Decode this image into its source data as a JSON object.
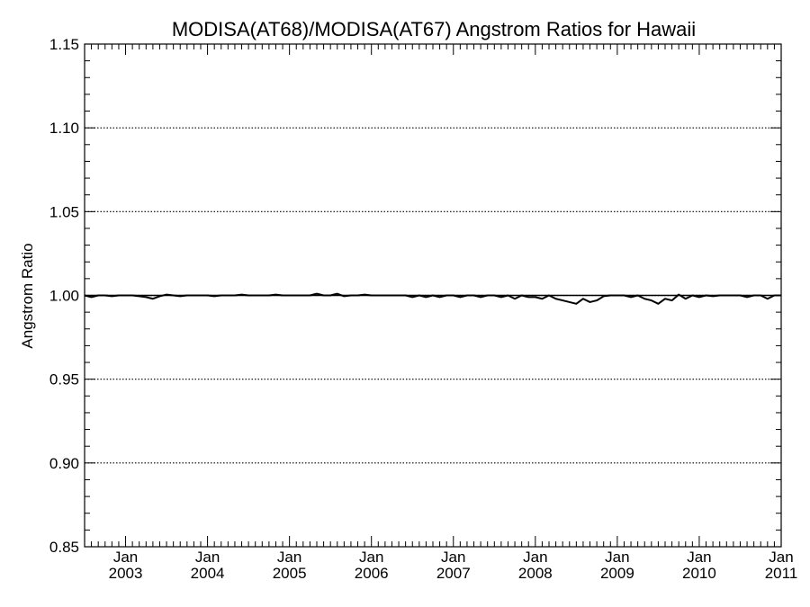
{
  "chart_data": {
    "type": "line",
    "title": "MODISA(AT68)/MODISA(AT67)  Angstrom Ratios for Hawaii",
    "xlabel": "",
    "ylabel": "Angstrom Ratio",
    "xlim": [
      "2002-07",
      "2011-01"
    ],
    "ylim": [
      0.85,
      1.15
    ],
    "grid": "horizontal dotted",
    "x_ticks": [
      {
        "month": "Jan",
        "year": "2003",
        "date": "2003-01"
      },
      {
        "month": "Jan",
        "year": "2004",
        "date": "2004-01"
      },
      {
        "month": "Jan",
        "year": "2005",
        "date": "2005-01"
      },
      {
        "month": "Jan",
        "year": "2006",
        "date": "2006-01"
      },
      {
        "month": "Jan",
        "year": "2007",
        "date": "2007-01"
      },
      {
        "month": "Jan",
        "year": "2008",
        "date": "2008-01"
      },
      {
        "month": "Jan",
        "year": "2009",
        "date": "2009-01"
      },
      {
        "month": "Jan",
        "year": "2010",
        "date": "2010-01"
      },
      {
        "month": "Jan",
        "year": "2011",
        "date": "2011-01"
      }
    ],
    "y_ticks": [
      "0.85",
      "0.90",
      "0.95",
      "1.00",
      "1.05",
      "1.10",
      "1.15"
    ],
    "reference_line": 1.0,
    "series": [
      {
        "x": [
          "2002-07",
          "2002-08",
          "2002-09",
          "2002-10",
          "2002-11",
          "2002-12",
          "2003-01",
          "2003-02",
          "2003-03",
          "2003-04",
          "2003-05",
          "2003-06",
          "2003-07",
          "2003-08",
          "2003-09",
          "2003-10",
          "2003-11",
          "2003-12",
          "2004-01",
          "2004-02",
          "2004-03",
          "2004-04",
          "2004-05",
          "2004-06",
          "2004-07",
          "2004-08",
          "2004-09",
          "2004-10",
          "2004-11",
          "2004-12",
          "2005-01",
          "2005-02",
          "2005-03",
          "2005-04",
          "2005-05",
          "2005-06",
          "2005-07",
          "2005-08",
          "2005-09",
          "2005-10",
          "2005-11",
          "2005-12",
          "2006-01",
          "2006-02",
          "2006-03",
          "2006-04",
          "2006-05",
          "2006-06",
          "2006-07",
          "2006-08",
          "2006-09",
          "2006-10",
          "2006-11",
          "2006-12",
          "2007-01",
          "2007-02",
          "2007-03",
          "2007-04",
          "2007-05",
          "2007-06",
          "2007-07",
          "2007-08",
          "2007-09",
          "2007-10",
          "2007-11",
          "2007-12",
          "2008-01",
          "2008-02",
          "2008-03",
          "2008-04",
          "2008-05",
          "2008-06",
          "2008-07",
          "2008-08",
          "2008-09",
          "2008-10",
          "2008-11",
          "2008-12",
          "2009-01",
          "2009-02",
          "2009-03",
          "2009-04",
          "2009-05",
          "2009-06",
          "2009-07",
          "2009-08",
          "2009-09",
          "2009-10",
          "2009-11",
          "2009-12",
          "2010-01",
          "2010-02",
          "2010-03",
          "2010-04",
          "2010-05",
          "2010-06",
          "2010-07",
          "2010-08",
          "2010-09",
          "2010-10",
          "2010-11",
          "2010-12",
          "2011-01"
        ],
        "values": [
          1.0,
          0.999,
          1.0,
          1.0,
          0.9995,
          1.0,
          1.0,
          1.0,
          0.9995,
          0.999,
          0.998,
          0.9995,
          1.0005,
          1.0,
          0.9995,
          1.0,
          1.0,
          1.0,
          1.0,
          0.9995,
          1.0,
          1.0,
          1.0,
          1.0005,
          1.0,
          1.0,
          1.0,
          1.0,
          1.0005,
          1.0,
          1.0,
          1.0,
          1.0,
          1.0,
          1.001,
          1.0,
          1.0,
          1.001,
          0.9995,
          1.0,
          1.0,
          1.0005,
          1.0,
          1.0,
          1.0,
          1.0,
          1.0,
          1.0,
          0.999,
          1.0,
          0.999,
          1.0,
          0.999,
          1.0,
          1.0,
          0.999,
          1.0,
          1.0,
          0.999,
          1.0,
          1.0,
          0.999,
          1.0,
          0.998,
          1.0,
          0.999,
          0.999,
          0.998,
          1.0,
          0.998,
          0.997,
          0.996,
          0.995,
          0.998,
          0.996,
          0.997,
          0.9995,
          1.0,
          1.0,
          1.0,
          0.999,
          1.0,
          0.998,
          0.997,
          0.995,
          0.998,
          0.997,
          1.0005,
          0.998,
          1.0,
          0.999,
          1.0,
          0.9995,
          1.0,
          1.0,
          1.0,
          1.0,
          0.999,
          1.0,
          1.0,
          0.998,
          1.0,
          1.0
        ]
      }
    ]
  }
}
